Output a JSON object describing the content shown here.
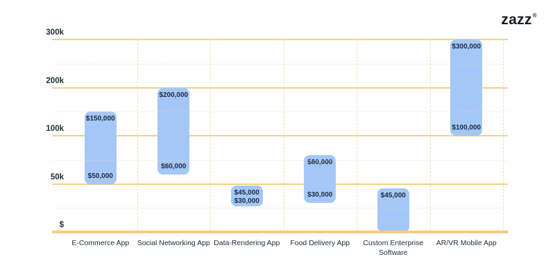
{
  "logo": {
    "text": "zazz",
    "registered_mark": "®"
  },
  "chart_data": {
    "type": "bar",
    "subtype": "floating_range_column",
    "title": "",
    "xlabel": "",
    "ylabel": "",
    "legend": "none",
    "grid": "solid gold horizontal major lines, faint dotted minor lines midway, dashed vertical column separators, thick gold baseline",
    "y_scale_note": "ticks 0 / 50k / 100k / 200k / 300k are evenly spaced (non-linear scale), values interpolated within each band",
    "categories": [
      "E-Commerce App",
      "Social Networking App",
      "Data-Rendering App",
      "Food Delivery App",
      "Custom Enterprise Software",
      "AR/VR Mobile App"
    ],
    "y_ticks": [
      {
        "value": 0,
        "label": "$"
      },
      {
        "value": 50000,
        "label": "50k"
      },
      {
        "value": 100000,
        "label": "100k"
      },
      {
        "value": 200000,
        "label": "200k"
      },
      {
        "value": 300000,
        "label": "300k"
      }
    ],
    "series": [
      {
        "name": "App development cost range (USD)",
        "data": [
          {
            "category": "E-Commerce App",
            "low": 50000,
            "high": 150000,
            "low_label": "$50,000",
            "high_label": "$150,000"
          },
          {
            "category": "Social Networking App",
            "low": 60000,
            "high": 200000,
            "low_label": "$60,000",
            "high_label": "$200,000"
          },
          {
            "category": "Data-Rendering App",
            "low": 30000,
            "high": 45000,
            "low_label": "$30,000",
            "high_label": "$45,000"
          },
          {
            "category": "Food Delivery App",
            "low": 30000,
            "high": 80000,
            "low_label": "$30,000",
            "high_label": "$80,000"
          },
          {
            "category": "Custom Enterprise Software",
            "low": 0,
            "high": 45000,
            "low_label": "",
            "high_label": "$45,000"
          },
          {
            "category": "AR/VR Mobile App",
            "low": 100000,
            "high": 300000,
            "low_label": "$100,000",
            "high_label": "$300,000"
          }
        ]
      }
    ]
  },
  "colors": {
    "background": "#ffffff",
    "bar_fill": "#a5c7f8",
    "bar_label": "#1d2b3f",
    "grid_major": "#f4d086",
    "grid_minor": "#f0d9a6",
    "column_separator": "#f7dfa6",
    "baseline": "#f5cd78",
    "axis_text": "#232c36",
    "logo_text": "#14191f"
  }
}
